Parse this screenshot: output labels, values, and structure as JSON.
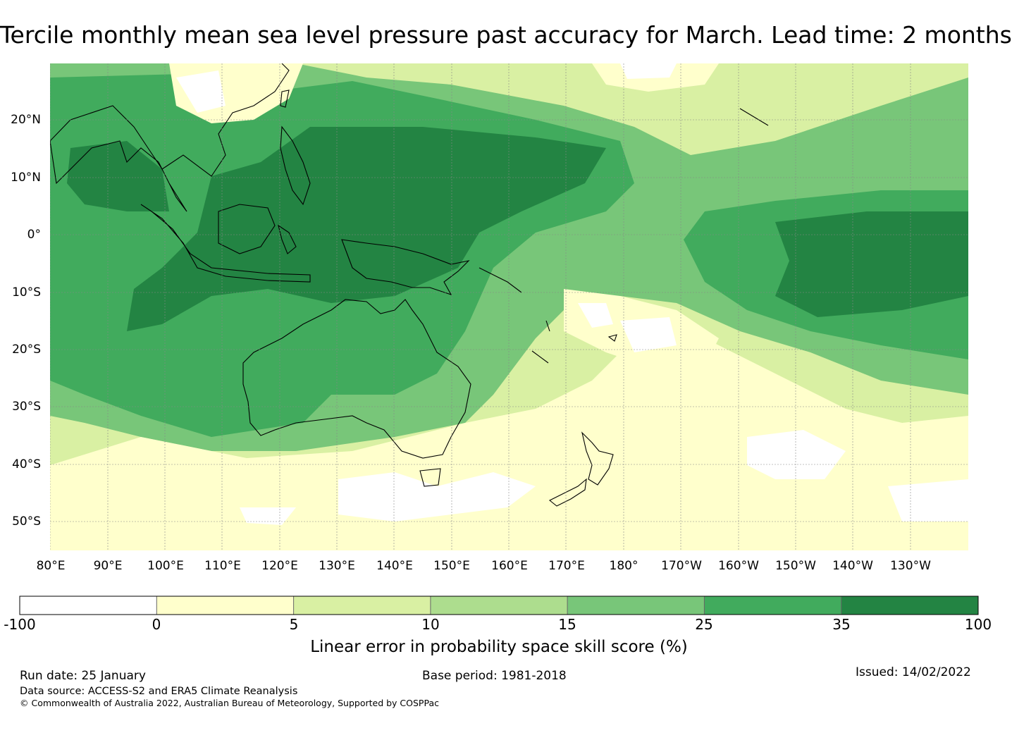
{
  "title": "Tercile monthly mean sea level pressure past accuracy for March. Lead time: 2 months",
  "map": {
    "lon_labels": [
      "80°E",
      "90°E",
      "100°E",
      "110°E",
      "120°E",
      "130°E",
      "140°E",
      "150°E",
      "160°E",
      "170°E",
      "180°",
      "170°W",
      "160°W",
      "150°W",
      "140°W",
      "130°W"
    ],
    "lat_labels": [
      "20°N",
      "10°N",
      "0°",
      "10°S",
      "20°S",
      "30°S",
      "40°S",
      "50°S"
    ],
    "ocean_skill_color": "#d8efa0"
  },
  "colorbar": {
    "label": "Linear error in probability space skill score (%)",
    "ticks": [
      "-100",
      "0",
      "5",
      "10",
      "15",
      "25",
      "35",
      "100"
    ],
    "colors": [
      "#ffffff",
      "#ffffcc",
      "#d9f0a3",
      "#addd8e",
      "#78c679",
      "#41ab5d",
      "#238443"
    ]
  },
  "footer": {
    "run_date": "Run date: 25 January",
    "base_period": "Base period: 1981-2018",
    "issued": "Issued: 14/02/2022",
    "data_source": "Data source: ACCESS-S2 and ERA5 Climate Reanalysis",
    "copyright": "© Commonwealth of Australia 2022, Australian Bureau of Meteorology, Supported by COSPPac"
  }
}
